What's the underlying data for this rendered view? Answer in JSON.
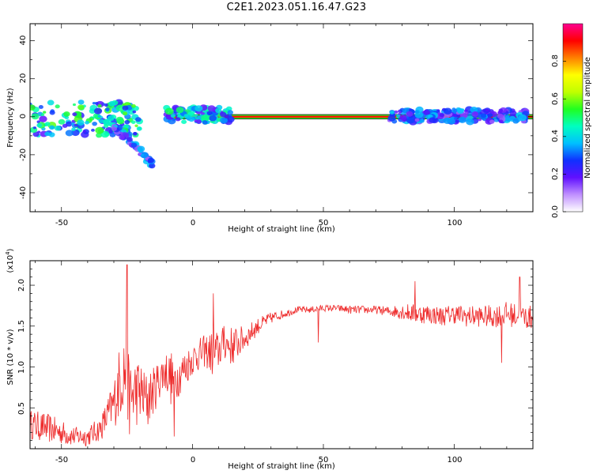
{
  "title": "C2E1.2023.051.16.47.G23",
  "chart_data": [
    {
      "type": "heatmap",
      "xlabel": "Height of straight line (km)",
      "ylabel": "Frequency (Hz)",
      "xlim": [
        -62,
        130
      ],
      "ylim": [
        -50,
        49
      ],
      "xticks": [
        -50,
        0,
        50,
        100
      ],
      "yticks": [
        -40,
        -20,
        0,
        20,
        40
      ],
      "grid": false,
      "colorbar": {
        "label": "Normalized spectral amplitude",
        "range": [
          0,
          1
        ],
        "ticks": [
          "0.0",
          "0.2",
          "0.4",
          "0.6",
          "0.8"
        ],
        "colors": [
          "#ffffff",
          "#c090ff",
          "#6010ff",
          "#1030ff",
          "#00c0ff",
          "#00ffc0",
          "#20ff20",
          "#c0ff00",
          "#ffff00",
          "#ff8000",
          "#ff0000",
          "#ff0090"
        ]
      },
      "features": [
        {
          "desc": "steady line",
          "x_range": [
            -10,
            130
          ],
          "frequency": 0,
          "amplitude": 1.0
        },
        {
          "desc": "main cluster",
          "x_range": [
            -62,
            -20
          ],
          "frequency_range": [
            -10,
            8
          ],
          "amplitude": 0.45
        },
        {
          "desc": "descending streak",
          "x_range": [
            -30,
            -15
          ],
          "frequency_range": [
            -25,
            -5
          ],
          "amplitude": 0.3
        },
        {
          "desc": "broadening",
          "x_range": [
            -10,
            15
          ],
          "frequency_range": [
            -3,
            5
          ],
          "amplitude": 0.4
        },
        {
          "desc": "broadening",
          "x_range": [
            75,
            128
          ],
          "frequency_range": [
            -3,
            4
          ],
          "amplitude": 0.3
        }
      ]
    },
    {
      "type": "line",
      "xlabel": "Height of straight line (km)",
      "ylabel": "SNR (10 * v/v)",
      "y_multiplier": "(x10",
      "y_multiplier_exp": "4",
      "y_multiplier_close": ")",
      "xlim": [
        -62,
        130
      ],
      "ylim": [
        0,
        2.3
      ],
      "xticks": [
        -50,
        0,
        50,
        100
      ],
      "yticks": [
        "0.5",
        "1.0",
        "1.5",
        "2.0"
      ],
      "grid": false,
      "series": [
        {
          "color": "#ee2b2b",
          "x": [
            -62,
            -55,
            -50,
            -45,
            -40,
            -35,
            -30,
            -28,
            -26,
            -24,
            -22,
            -20,
            -18,
            -15,
            -12,
            -10,
            -8,
            -5,
            0,
            5,
            8,
            10,
            12,
            15,
            20,
            25,
            30,
            35,
            40,
            45,
            50,
            55,
            60,
            65,
            70,
            75,
            80,
            85,
            90,
            95,
            100,
            105,
            110,
            115,
            120,
            125,
            130
          ],
          "mean": [
            0.3,
            0.25,
            0.2,
            0.15,
            0.15,
            0.25,
            0.55,
            0.8,
            1.0,
            0.6,
            0.7,
            0.7,
            0.6,
            0.7,
            0.9,
            0.95,
            0.85,
            0.9,
            1.1,
            1.2,
            1.15,
            1.2,
            1.3,
            1.25,
            1.35,
            1.5,
            1.6,
            1.65,
            1.7,
            1.7,
            1.72,
            1.72,
            1.7,
            1.7,
            1.7,
            1.68,
            1.68,
            1.65,
            1.65,
            1.62,
            1.65,
            1.62,
            1.62,
            1.62,
            1.65,
            1.62,
            1.6
          ],
          "noise": [
            0.18,
            0.18,
            0.15,
            0.12,
            0.12,
            0.15,
            0.3,
            0.45,
            0.55,
            0.45,
            0.45,
            0.4,
            0.35,
            0.3,
            0.25,
            0.25,
            0.35,
            0.25,
            0.2,
            0.2,
            0.3,
            0.25,
            0.2,
            0.25,
            0.15,
            0.1,
            0.07,
            0.05,
            0.04,
            0.04,
            0.04,
            0.04,
            0.05,
            0.05,
            0.05,
            0.06,
            0.1,
            0.12,
            0.12,
            0.12,
            0.12,
            0.13,
            0.13,
            0.14,
            0.15,
            0.15,
            0.15
          ],
          "peaks": [
            [
              -25,
              2.25
            ],
            [
              -17,
              1.75
            ],
            [
              8,
              1.9
            ],
            [
              12,
              1.5
            ],
            [
              85,
              2.05
            ],
            [
              125,
              2.1
            ]
          ],
          "dips": [
            [
              -7,
              0.15
            ],
            [
              -17,
              0.3
            ],
            [
              48,
              1.3
            ],
            [
              118,
              1.05
            ]
          ]
        }
      ]
    }
  ]
}
